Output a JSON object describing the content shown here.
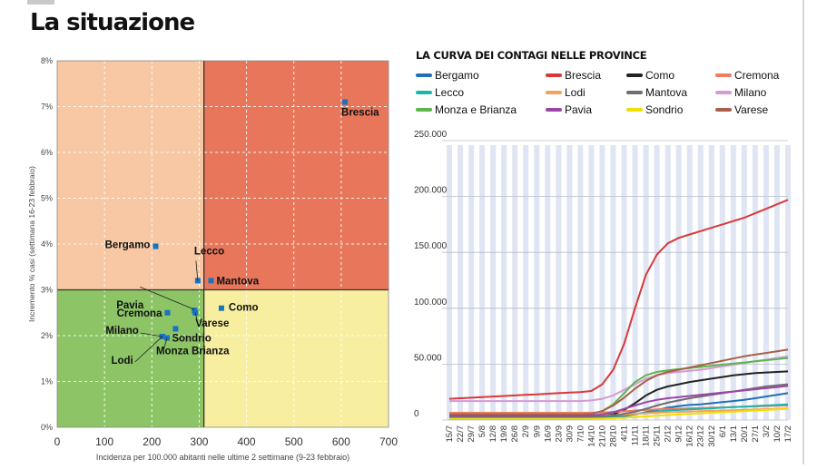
{
  "page": {
    "title": "La situazione"
  },
  "chart_data": [
    {
      "type": "scatter",
      "title": "",
      "xlabel": "Incidenza per 100.000 abitanti nelle ultime 2 settimane (9-23 febbraio)",
      "ylabel": "Incremento % casi (settimana 16-23 febbraio)",
      "xlim": [
        0,
        700
      ],
      "ylim": [
        0,
        8
      ],
      "xticks": [
        "0",
        "100",
        "200",
        "300",
        "400",
        "500",
        "600",
        "700"
      ],
      "yticks": [
        "0%",
        "1%",
        "2%",
        "3%",
        "4%",
        "5%",
        "6%",
        "7%",
        "8%"
      ],
      "thresholds": {
        "x": 310,
        "y": 3
      },
      "zone_colors": {
        "top_left": "#f7c8a3",
        "top_right": "#e8765a",
        "bottom_left": "#8cc466",
        "bottom_right": "#f7ef9f"
      },
      "marker_color": "#1b72bf",
      "grid": true,
      "points": [
        {
          "name": "Brescia",
          "x": 608,
          "y": 7.1
        },
        {
          "name": "Bergamo",
          "x": 208,
          "y": 3.95
        },
        {
          "name": "Lecco",
          "x": 297,
          "y": 3.2
        },
        {
          "name": "Mantova",
          "x": 325,
          "y": 3.2
        },
        {
          "name": "Pavia",
          "x": 290,
          "y": 2.55
        },
        {
          "name": "Como",
          "x": 347,
          "y": 2.6
        },
        {
          "name": "Varese",
          "x": 292,
          "y": 2.5
        },
        {
          "name": "Cremona",
          "x": 233,
          "y": 2.5
        },
        {
          "name": "Sondrio",
          "x": 250,
          "y": 2.15
        },
        {
          "name": "Milano",
          "x": 222,
          "y": 1.98
        },
        {
          "name": "Monza Brianza",
          "x": 232,
          "y": 1.95
        },
        {
          "name": "Lodi",
          "x": 222,
          "y": 1.98
        }
      ]
    },
    {
      "type": "line",
      "title": "LA CURVA DEI CONTAGI NELLE PROVINCE",
      "xlabel": "",
      "ylabel": "",
      "ylim": [
        0,
        250000
      ],
      "yticks": [
        "0",
        "50.000",
        "100.000",
        "150.000",
        "200.000",
        "250.000"
      ],
      "grid": true,
      "legend_position": "top",
      "x": [
        "15/7",
        "22/7",
        "29/7",
        "5/8",
        "12/8",
        "19/8",
        "26/8",
        "2/9",
        "9/9",
        "16/9",
        "23/9",
        "30/9",
        "7/10",
        "14/10",
        "21/10",
        "28/10",
        "4/11",
        "11/11",
        "18/11",
        "25/11",
        "2/12",
        "9/12",
        "16/12",
        "23/12",
        "30/12",
        "6/1",
        "13/1",
        "20/1",
        "27/1",
        "3/2",
        "10/2",
        "17/2"
      ],
      "series": [
        {
          "name": "Bergamo",
          "color": "#1f6fb5",
          "values": [
            1000,
            1000,
            1000,
            1000,
            1000,
            1000,
            1000,
            1000,
            1000,
            1000,
            1000,
            1000,
            1000,
            1200,
            1800,
            2500,
            3500,
            5000,
            7000,
            9000,
            11000,
            12500,
            13500,
            14000,
            15000,
            16000,
            17000,
            18000,
            19500,
            21000,
            22500,
            24000
          ]
        },
        {
          "name": "Brescia",
          "color": "#d9383a",
          "values": [
            19000,
            19500,
            20000,
            20500,
            21000,
            21500,
            22000,
            22500,
            23000,
            23500,
            24000,
            24500,
            25000,
            26000,
            32000,
            45000,
            68000,
            100000,
            130000,
            148000,
            158000,
            163000,
            166000,
            169000,
            172000,
            175000,
            178000,
            181000,
            185000,
            189000,
            193000,
            197000
          ]
        },
        {
          "name": "Como",
          "color": "#222222",
          "values": [
            3000,
            3000,
            3000,
            3000,
            3000,
            3000,
            3000,
            3000,
            3000,
            3000,
            3000,
            3000,
            3000,
            3000,
            3500,
            5000,
            9000,
            15000,
            22000,
            27000,
            30000,
            32000,
            34000,
            35500,
            37000,
            38500,
            40000,
            41000,
            42000,
            42500,
            43000,
            43500
          ]
        },
        {
          "name": "Cremona",
          "color": "#ef7d5e",
          "values": [
            6500,
            6500,
            6500,
            6500,
            6500,
            6500,
            6500,
            6500,
            6500,
            6500,
            6500,
            6500,
            6500,
            6600,
            6800,
            7200,
            7800,
            8500,
            9000,
            9500,
            10000,
            10200,
            10500,
            10800,
            11000,
            11300,
            11600,
            11900,
            12200,
            12500,
            12800,
            13000
          ]
        },
        {
          "name": "Lecco",
          "color": "#1bb5b0",
          "values": [
            2500,
            2500,
            2500,
            2500,
            2500,
            2500,
            2500,
            2500,
            2500,
            2500,
            2500,
            2500,
            2500,
            2600,
            3000,
            3500,
            4500,
            5500,
            6500,
            7500,
            8500,
            9000,
            9500,
            10000,
            10500,
            11000,
            11500,
            12000,
            12500,
            13000,
            13500,
            14000
          ]
        },
        {
          "name": "Lodi",
          "color": "#f2a25a",
          "values": [
            3500,
            3500,
            3500,
            3500,
            3500,
            3500,
            3500,
            3500,
            3500,
            3500,
            3500,
            3500,
            3500,
            3600,
            3800,
            4200,
            4800,
            5500,
            6000,
            6500,
            7000,
            7300,
            7600,
            7900,
            8200,
            8500,
            8800,
            9100,
            9400,
            9700,
            10000,
            10300
          ]
        },
        {
          "name": "Mantova",
          "color": "#6f6f6f",
          "values": [
            3000,
            3000,
            3000,
            3000,
            3000,
            3000,
            3000,
            3000,
            3000,
            3000,
            3000,
            3000,
            3000,
            3100,
            3400,
            4000,
            5500,
            7500,
            10000,
            13000,
            15500,
            17500,
            19500,
            21000,
            22500,
            24000,
            25500,
            27000,
            28500,
            30000,
            31000,
            32000
          ]
        },
        {
          "name": "Milano",
          "color": "#d59ad6",
          "values": [
            17000,
            17000,
            17000,
            17000,
            17000,
            17000,
            17000,
            17000,
            17000,
            17000,
            17000,
            17000,
            17000,
            17500,
            19000,
            22000,
            27000,
            32000,
            37000,
            40000,
            42000,
            43000,
            44000,
            45000,
            46500,
            48000,
            49500,
            51000,
            52500,
            54000,
            55500,
            57000
          ]
        },
        {
          "name": "Monza e Brianza",
          "color": "#5cb84a",
          "values": [
            5000,
            5000,
            5000,
            5000,
            5000,
            5000,
            5000,
            5000,
            5000,
            5000,
            5000,
            5000,
            5000,
            5500,
            8000,
            14000,
            24000,
            34000,
            40000,
            43000,
            44500,
            45500,
            46500,
            47500,
            48500,
            49500,
            50500,
            51500,
            52500,
            53500,
            54500,
            55500
          ]
        },
        {
          "name": "Pavia",
          "color": "#9c44a8",
          "values": [
            4000,
            4000,
            4000,
            4000,
            4000,
            4000,
            4000,
            4000,
            4000,
            4000,
            4000,
            4000,
            4000,
            4200,
            5000,
            7000,
            10000,
            13000,
            16000,
            18000,
            19500,
            20500,
            21500,
            22500,
            23500,
            24500,
            25500,
            26500,
            27500,
            28500,
            29500,
            30500
          ]
        },
        {
          "name": "Sondrio",
          "color": "#f0e000",
          "values": [
            1000,
            1000,
            1000,
            1000,
            1000,
            1000,
            1000,
            1000,
            1000,
            1000,
            1000,
            1000,
            1000,
            1100,
            1300,
            1600,
            2000,
            2600,
            3200,
            3800,
            4400,
            5000,
            5500,
            6000,
            6500,
            7000,
            7500,
            8000,
            8500,
            9000,
            9500,
            10000
          ]
        },
        {
          "name": "Varese",
          "color": "#a8604a",
          "values": [
            5000,
            5000,
            5000,
            5000,
            5000,
            5000,
            5000,
            5000,
            5000,
            5000,
            5000,
            5000,
            5000,
            5500,
            8000,
            13000,
            20000,
            28000,
            35000,
            40000,
            43000,
            45000,
            47000,
            49000,
            51000,
            53000,
            55000,
            57000,
            58500,
            60000,
            61500,
            63000
          ]
        }
      ]
    }
  ]
}
